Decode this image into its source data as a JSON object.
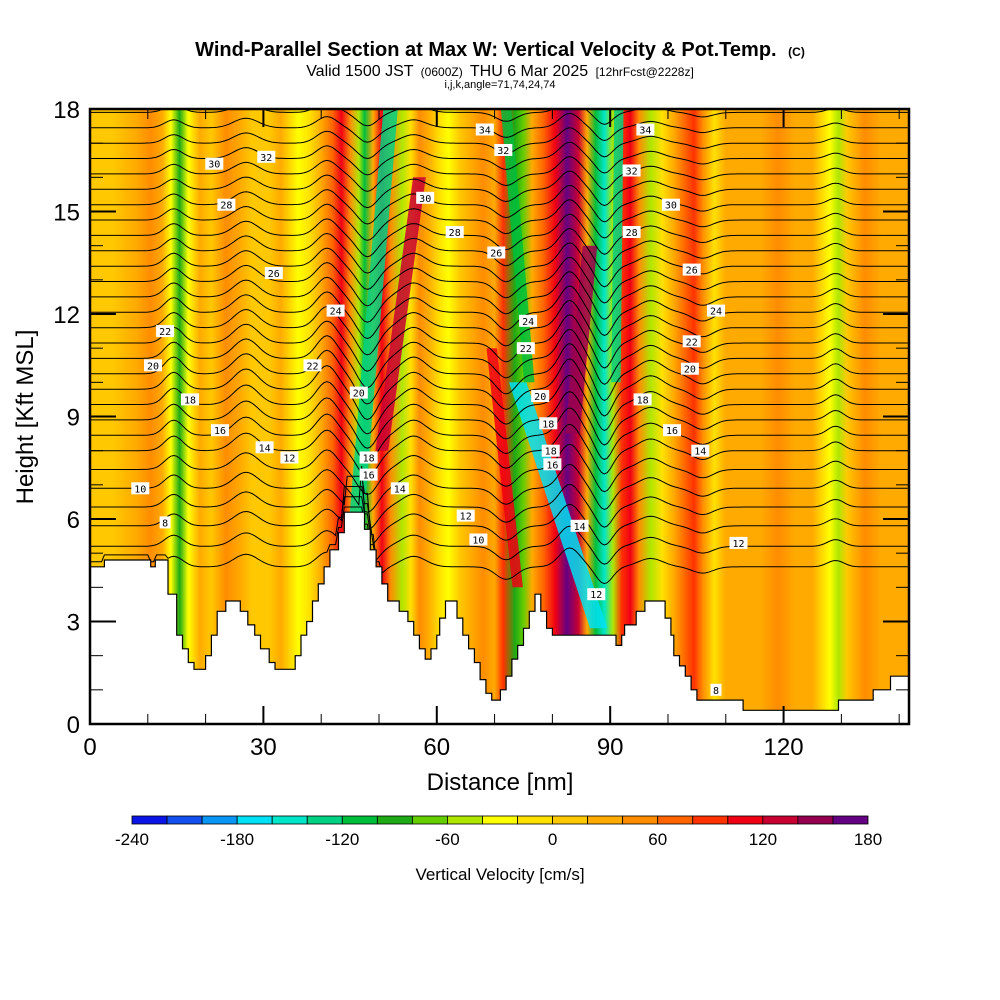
{
  "header": {
    "title": "Wind-Parallel Section at Max W: Vertical Velocity & Pot.Temp.",
    "copyright": "(C)",
    "valid_prefix": "Valid 1500 JST",
    "valid_utc": "(0600Z)",
    "valid_date": "THU 6 Mar 2025",
    "forecast": "[12hrFcst@2228z]",
    "section_info": "i,j,k,angle=71,74,24,74"
  },
  "chart_data": {
    "type": "heatmap",
    "title": "Wind-Parallel Section at Max W: Vertical Velocity & Pot.Temp.",
    "xlabel": "Distance [nm]",
    "ylabel": "Height [Kft MSL]",
    "xlim": [
      0,
      141.7
    ],
    "ylim": [
      0,
      18
    ],
    "xticks": [
      0,
      30,
      60,
      90,
      120
    ],
    "xtick_labels": [
      "0",
      "30",
      "60",
      "90",
      "120"
    ],
    "x_minor_step": 10,
    "yticks": [
      0,
      3,
      6,
      9,
      12,
      15,
      18
    ],
    "ytick_labels": [
      "0",
      "3",
      "6",
      "9",
      "12",
      "15",
      "18"
    ],
    "y_minor_step": 1,
    "colorbar": {
      "title": "Vertical Velocity [cm/s]",
      "min": -240,
      "max": 180,
      "step": 20,
      "tick_values": [
        -240,
        -180,
        -120,
        -60,
        0,
        60,
        120,
        180
      ],
      "tick_labels": [
        "-240",
        "-180",
        "-120",
        "-60",
        "0",
        "60",
        "120",
        "180"
      ],
      "colors": [
        "#0a14e6",
        "#1450f0",
        "#0a96f5",
        "#00e1f5",
        "#00e6c8",
        "#00d282",
        "#00be3c",
        "#1eaa14",
        "#64cd00",
        "#afe600",
        "#ffff00",
        "#ffe100",
        "#ffc800",
        "#ffaa00",
        "#ff8c00",
        "#ff6400",
        "#ff3200",
        "#f00014",
        "#c80032",
        "#960050",
        "#640082"
      ]
    },
    "velocity_bands": [
      {
        "x": 0,
        "w": 0
      },
      {
        "x": 4,
        "w": 10
      },
      {
        "x": 8,
        "w": 25
      },
      {
        "x": 10.5,
        "w": 50
      },
      {
        "x": 12.5,
        "w": 20
      },
      {
        "x": 14,
        "w": -40
      },
      {
        "x": 15.5,
        "w": -90
      },
      {
        "x": 17,
        "w": -30
      },
      {
        "x": 19,
        "w": 20
      },
      {
        "x": 21,
        "w": 10
      },
      {
        "x": 23.5,
        "w": 40
      },
      {
        "x": 26,
        "w": 20
      },
      {
        "x": 28,
        "w": 0
      },
      {
        "x": 31,
        "w": 10
      },
      {
        "x": 33,
        "w": 30
      },
      {
        "x": 36,
        "w": -30
      },
      {
        "x": 38,
        "w": -10
      },
      {
        "x": 40,
        "w": 30
      },
      {
        "x": 42,
        "w": 70
      },
      {
        "x": 43.5,
        "w": 100
      },
      {
        "x": 45,
        "w": 40
      },
      {
        "x": 46.5,
        "w": -60
      },
      {
        "x": 47.5,
        "w": -110
      },
      {
        "x": 49,
        "w": 20
      },
      {
        "x": 50.5,
        "w": 110
      },
      {
        "x": 52,
        "w": 40
      },
      {
        "x": 54,
        "w": -50
      },
      {
        "x": 55.5,
        "w": -20
      },
      {
        "x": 57,
        "w": 50
      },
      {
        "x": 58.5,
        "w": 20
      },
      {
        "x": 60.5,
        "w": -10
      },
      {
        "x": 62,
        "w": -30
      },
      {
        "x": 64,
        "w": 0
      },
      {
        "x": 66,
        "w": 20
      },
      {
        "x": 68,
        "w": 40
      },
      {
        "x": 70,
        "w": 30
      },
      {
        "x": 71.5,
        "w": 80
      },
      {
        "x": 73.5,
        "w": -100
      },
      {
        "x": 75,
        "w": -80
      },
      {
        "x": 76.5,
        "w": 30
      },
      {
        "x": 78.5,
        "w": 60
      },
      {
        "x": 80.5,
        "w": 110
      },
      {
        "x": 82.5,
        "w": 160
      },
      {
        "x": 84.5,
        "w": 120
      },
      {
        "x": 86,
        "w": 20
      },
      {
        "x": 87.5,
        "w": -110
      },
      {
        "x": 89,
        "w": -150
      },
      {
        "x": 90.5,
        "w": -60
      },
      {
        "x": 92,
        "w": 90
      },
      {
        "x": 93.5,
        "w": 110
      },
      {
        "x": 95,
        "w": 40
      },
      {
        "x": 97,
        "w": -50
      },
      {
        "x": 99,
        "w": -10
      },
      {
        "x": 101,
        "w": 30
      },
      {
        "x": 103,
        "w": 60
      },
      {
        "x": 104.5,
        "w": 90
      },
      {
        "x": 106,
        "w": 40
      },
      {
        "x": 108,
        "w": -10
      },
      {
        "x": 110,
        "w": 20
      },
      {
        "x": 113,
        "w": 30
      },
      {
        "x": 116,
        "w": 20
      },
      {
        "x": 119,
        "w": 40
      },
      {
        "x": 122,
        "w": 30
      },
      {
        "x": 125,
        "w": 20
      },
      {
        "x": 128,
        "w": -30
      },
      {
        "x": 129.5,
        "w": -60
      },
      {
        "x": 131,
        "w": 0
      },
      {
        "x": 134,
        "w": 40
      },
      {
        "x": 137,
        "w": 20
      },
      {
        "x": 141.7,
        "w": 20
      }
    ],
    "terrain": [
      [
        0,
        4.6
      ],
      [
        2.5,
        4.6
      ],
      [
        2.5,
        4.8
      ],
      [
        10.5,
        4.8
      ],
      [
        10.5,
        4.6
      ],
      [
        11.3,
        4.6
      ],
      [
        11.3,
        4.8
      ],
      [
        13.5,
        4.8
      ],
      [
        13.5,
        3.8
      ],
      [
        15,
        3.8
      ],
      [
        15,
        2.6
      ],
      [
        16,
        2.6
      ],
      [
        16,
        2.2
      ],
      [
        17,
        2.2
      ],
      [
        17,
        1.8
      ],
      [
        18,
        1.8
      ],
      [
        18,
        1.6
      ],
      [
        20,
        1.6
      ],
      [
        20,
        2.0
      ],
      [
        21,
        2.0
      ],
      [
        21,
        2.6
      ],
      [
        22,
        2.6
      ],
      [
        22,
        3.3
      ],
      [
        23.5,
        3.3
      ],
      [
        23.5,
        3.6
      ],
      [
        26,
        3.6
      ],
      [
        26,
        3.3
      ],
      [
        27.3,
        3.3
      ],
      [
        27.3,
        2.9
      ],
      [
        28.5,
        2.9
      ],
      [
        28.5,
        2.6
      ],
      [
        29.5,
        2.6
      ],
      [
        29.5,
        2.2
      ],
      [
        31,
        2.2
      ],
      [
        31,
        1.8
      ],
      [
        32,
        1.8
      ],
      [
        32,
        1.6
      ],
      [
        35.5,
        1.6
      ],
      [
        35.5,
        2.0
      ],
      [
        36.5,
        2.0
      ],
      [
        36.5,
        2.6
      ],
      [
        37.5,
        2.6
      ],
      [
        37.5,
        3.0
      ],
      [
        38.5,
        3.0
      ],
      [
        38.5,
        3.6
      ],
      [
        39.5,
        3.6
      ],
      [
        39.5,
        4.1
      ],
      [
        40.5,
        4.1
      ],
      [
        40.5,
        4.6
      ],
      [
        41.5,
        4.6
      ],
      [
        41.5,
        5.1
      ],
      [
        43,
        5.1
      ],
      [
        43,
        5.6
      ],
      [
        44,
        5.6
      ],
      [
        44,
        6.2
      ],
      [
        47.5,
        6.2
      ],
      [
        47.5,
        5.7
      ],
      [
        48.5,
        5.7
      ],
      [
        48.5,
        5.1
      ],
      [
        49.5,
        5.1
      ],
      [
        49.5,
        4.6
      ],
      [
        50.5,
        4.6
      ],
      [
        50.5,
        4.1
      ],
      [
        51.5,
        4.1
      ],
      [
        51.5,
        3.6
      ],
      [
        52.5,
        3.6
      ],
      [
        52.5,
        3.6
      ],
      [
        53.5,
        3.6
      ],
      [
        53.5,
        3.3
      ],
      [
        55,
        3.3
      ],
      [
        55,
        3.0
      ],
      [
        56,
        3.0
      ],
      [
        56,
        2.6
      ],
      [
        57,
        2.6
      ],
      [
        57,
        2.2
      ],
      [
        58,
        2.2
      ],
      [
        58,
        1.9
      ],
      [
        59,
        1.9
      ],
      [
        59,
        2.2
      ],
      [
        60,
        2.2
      ],
      [
        60,
        2.6
      ],
      [
        60.5,
        2.6
      ],
      [
        60.5,
        3.1
      ],
      [
        61.5,
        3.1
      ],
      [
        61.5,
        3.6
      ],
      [
        63.5,
        3.6
      ],
      [
        63.5,
        3.1
      ],
      [
        64.5,
        3.1
      ],
      [
        64.5,
        2.6
      ],
      [
        65.5,
        2.6
      ],
      [
        65.5,
        2.2
      ],
      [
        66.5,
        2.2
      ],
      [
        66.5,
        1.8
      ],
      [
        67.5,
        1.8
      ],
      [
        67.5,
        1.3
      ],
      [
        68.5,
        1.3
      ],
      [
        68.5,
        0.9
      ],
      [
        69.5,
        0.9
      ],
      [
        69.5,
        0.7
      ],
      [
        71,
        0.7
      ],
      [
        71,
        1.0
      ],
      [
        72,
        1.0
      ],
      [
        72,
        1.4
      ],
      [
        73,
        1.4
      ],
      [
        73,
        1.9
      ],
      [
        74,
        1.9
      ],
      [
        74,
        2.3
      ],
      [
        75,
        2.3
      ],
      [
        75,
        2.8
      ],
      [
        76,
        2.8
      ],
      [
        76,
        3.3
      ],
      [
        77,
        3.3
      ],
      [
        77,
        3.8
      ],
      [
        78,
        3.8
      ],
      [
        78,
        3.3
      ],
      [
        79,
        3.3
      ],
      [
        79,
        2.8
      ],
      [
        80,
        2.8
      ],
      [
        80,
        2.6
      ],
      [
        85,
        2.6
      ],
      [
        85,
        2.6
      ],
      [
        88,
        2.6
      ],
      [
        88,
        2.6
      ],
      [
        91,
        2.6
      ],
      [
        91,
        2.3
      ],
      [
        92,
        2.3
      ],
      [
        92,
        2.6
      ],
      [
        92.5,
        2.6
      ],
      [
        92.5,
        2.9
      ],
      [
        94.5,
        2.9
      ],
      [
        94.5,
        3.3
      ],
      [
        96,
        3.3
      ],
      [
        96,
        3.6
      ],
      [
        98,
        3.6
      ],
      [
        98,
        3.6
      ],
      [
        99.5,
        3.6
      ],
      [
        99.5,
        3.1
      ],
      [
        100.5,
        3.1
      ],
      [
        100.5,
        2.6
      ],
      [
        101,
        2.6
      ],
      [
        101,
        2.0
      ],
      [
        102,
        2.0
      ],
      [
        102,
        1.7
      ],
      [
        103,
        1.7
      ],
      [
        103,
        1.4
      ],
      [
        104,
        1.4
      ],
      [
        104,
        1.0
      ],
      [
        105,
        1.0
      ],
      [
        105,
        0.7
      ],
      [
        106.5,
        0.7
      ],
      [
        106.5,
        0.7
      ],
      [
        113,
        0.7
      ],
      [
        113,
        0.4
      ],
      [
        129.5,
        0.4
      ],
      [
        129.5,
        0.7
      ],
      [
        135.5,
        0.7
      ],
      [
        135.5,
        1.0
      ],
      [
        138.5,
        1.0
      ],
      [
        138.5,
        1.4
      ],
      [
        141.7,
        1.4
      ]
    ],
    "isentropes": {
      "description": "Potential temperature contours (deg C), every 1",
      "levels_min": 6,
      "levels_max": 34,
      "level_step": 1
    },
    "contour_labels": [
      {
        "text": "8",
        "x": 13.0,
        "y": 5.9
      },
      {
        "text": "10",
        "x": 8.7,
        "y": 6.9
      },
      {
        "text": "12",
        "x": 34.5,
        "y": 7.8
      },
      {
        "text": "14",
        "x": 30.2,
        "y": 8.1
      },
      {
        "text": "16",
        "x": 22.5,
        "y": 8.6
      },
      {
        "text": "18",
        "x": 17.3,
        "y": 9.5
      },
      {
        "text": "20",
        "x": 10.9,
        "y": 10.5
      },
      {
        "text": "22",
        "x": 13.0,
        "y": 11.5
      },
      {
        "text": "22",
        "x": 38.5,
        "y": 10.5
      },
      {
        "text": "24",
        "x": 42.5,
        "y": 12.1
      },
      {
        "text": "26",
        "x": 31.8,
        "y": 13.2
      },
      {
        "text": "28",
        "x": 23.6,
        "y": 15.2
      },
      {
        "text": "30",
        "x": 21.5,
        "y": 16.4
      },
      {
        "text": "32",
        "x": 30.5,
        "y": 16.6
      },
      {
        "text": "20",
        "x": 46.5,
        "y": 9.7
      },
      {
        "text": "18",
        "x": 48.2,
        "y": 7.8
      },
      {
        "text": "16",
        "x": 48.2,
        "y": 7.3
      },
      {
        "text": "14",
        "x": 53.6,
        "y": 6.9
      },
      {
        "text": "12",
        "x": 65.0,
        "y": 6.1
      },
      {
        "text": "10",
        "x": 67.2,
        "y": 5.4
      },
      {
        "text": "30",
        "x": 58.0,
        "y": 15.4
      },
      {
        "text": "28",
        "x": 63.1,
        "y": 14.4
      },
      {
        "text": "34",
        "x": 68.3,
        "y": 17.4
      },
      {
        "text": "32",
        "x": 71.5,
        "y": 16.8
      },
      {
        "text": "26",
        "x": 70.3,
        "y": 13.8
      },
      {
        "text": "24",
        "x": 75.8,
        "y": 11.8
      },
      {
        "text": "22",
        "x": 75.4,
        "y": 11.0
      },
      {
        "text": "20",
        "x": 77.9,
        "y": 9.6
      },
      {
        "text": "18",
        "x": 79.3,
        "y": 8.8
      },
      {
        "text": "18",
        "x": 79.7,
        "y": 8.0
      },
      {
        "text": "16",
        "x": 80.0,
        "y": 7.6
      },
      {
        "text": "14",
        "x": 84.7,
        "y": 5.8
      },
      {
        "text": "12",
        "x": 87.6,
        "y": 3.8
      },
      {
        "text": "34",
        "x": 96.1,
        "y": 17.4
      },
      {
        "text": "32",
        "x": 93.7,
        "y": 16.2
      },
      {
        "text": "30",
        "x": 100.5,
        "y": 15.2
      },
      {
        "text": "28",
        "x": 93.7,
        "y": 14.4
      },
      {
        "text": "26",
        "x": 104.1,
        "y": 13.3
      },
      {
        "text": "24",
        "x": 108.3,
        "y": 12.1
      },
      {
        "text": "22",
        "x": 104.1,
        "y": 11.2
      },
      {
        "text": "20",
        "x": 103.8,
        "y": 10.4
      },
      {
        "text": "18",
        "x": 95.6,
        "y": 9.5
      },
      {
        "text": "16",
        "x": 100.7,
        "y": 8.6
      },
      {
        "text": "14",
        "x": 105.6,
        "y": 8.0
      },
      {
        "text": "12",
        "x": 112.2,
        "y": 5.3
      },
      {
        "text": "8",
        "x": 108.3,
        "y": 1.0
      }
    ]
  }
}
